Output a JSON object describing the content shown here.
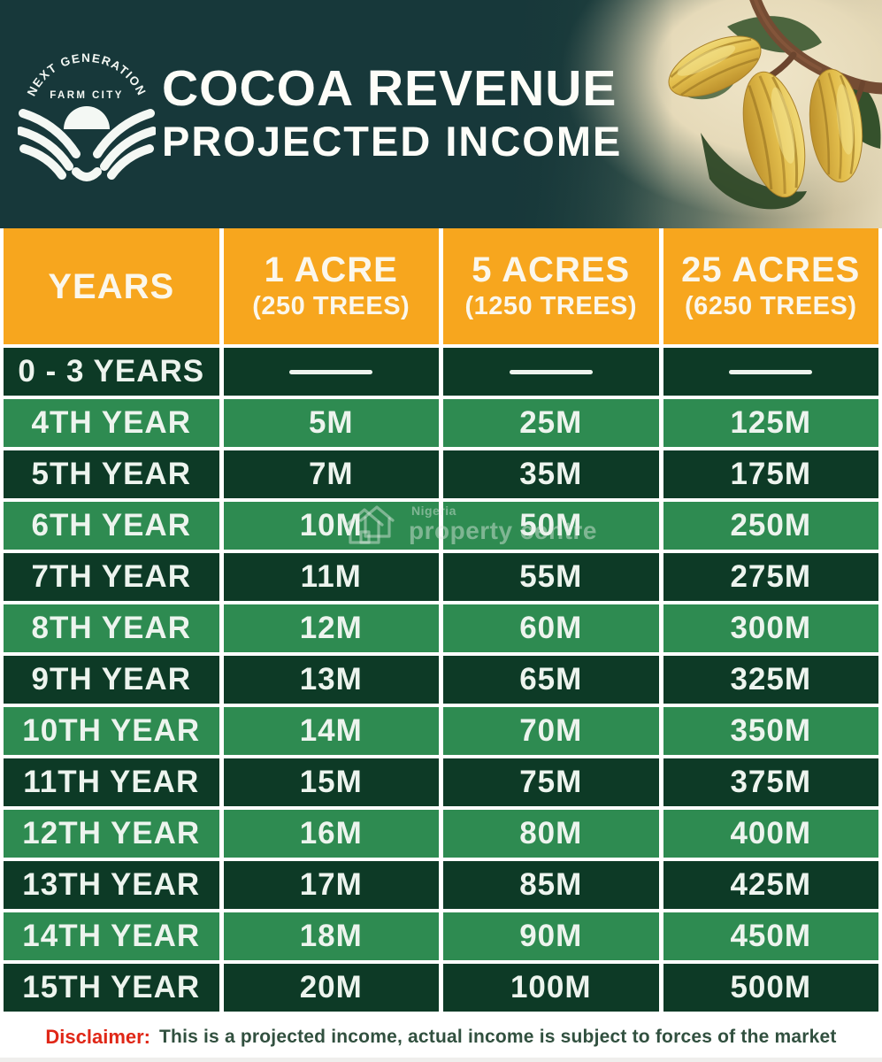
{
  "header": {
    "logo": {
      "arc_text": "NEXT GENERATION",
      "sub_text": "FARM CITY"
    },
    "title_line1": "COCOA REVENUE",
    "title_line2": "PROJECTED INCOME"
  },
  "chart_data": {
    "type": "table",
    "title": "COCOA REVENUE PROJECTED INCOME",
    "columns": [
      {
        "label": "YEARS",
        "sub": ""
      },
      {
        "label": "1 ACRE",
        "sub": "(250 TREES)"
      },
      {
        "label": "5 ACRES",
        "sub": "(1250 TREES)"
      },
      {
        "label": "25 ACRES",
        "sub": "(6250 TREES)"
      }
    ],
    "rows": [
      {
        "year": "0 - 3 YEARS",
        "values": [
          "—",
          "—",
          "—"
        ]
      },
      {
        "year": "4TH YEAR",
        "values": [
          "5M",
          "25M",
          "125M"
        ]
      },
      {
        "year": "5TH YEAR",
        "values": [
          "7M",
          "35M",
          "175M"
        ]
      },
      {
        "year": "6TH YEAR",
        "values": [
          "10M",
          "50M",
          "250M"
        ]
      },
      {
        "year": "7TH YEAR",
        "values": [
          "11M",
          "55M",
          "275M"
        ]
      },
      {
        "year": "8TH YEAR",
        "values": [
          "12M",
          "60M",
          "300M"
        ]
      },
      {
        "year": "9TH YEAR",
        "values": [
          "13M",
          "65M",
          "325M"
        ]
      },
      {
        "year": "10TH YEAR",
        "values": [
          "14M",
          "70M",
          "350M"
        ]
      },
      {
        "year": "11TH YEAR",
        "values": [
          "15M",
          "75M",
          "375M"
        ]
      },
      {
        "year": "12TH YEAR",
        "values": [
          "16M",
          "80M",
          "400M"
        ]
      },
      {
        "year": "13TH YEAR",
        "values": [
          "17M",
          "85M",
          "425M"
        ]
      },
      {
        "year": "14TH YEAR",
        "values": [
          "18M",
          "90M",
          "450M"
        ]
      },
      {
        "year": "15TH YEAR",
        "values": [
          "20M",
          "100M",
          "500M"
        ]
      }
    ]
  },
  "watermark": {
    "line1": "Nigeria",
    "line2": "property centre"
  },
  "disclaimer": {
    "label": "Disclaimer:",
    "text": "This is a projected income, actual income is subject to forces of the market"
  },
  "colors": {
    "teal": "#17383a",
    "orange": "#f7a61e",
    "row_dark": "#0d3a26",
    "row_mid": "#2e8b51",
    "red": "#e02717"
  }
}
